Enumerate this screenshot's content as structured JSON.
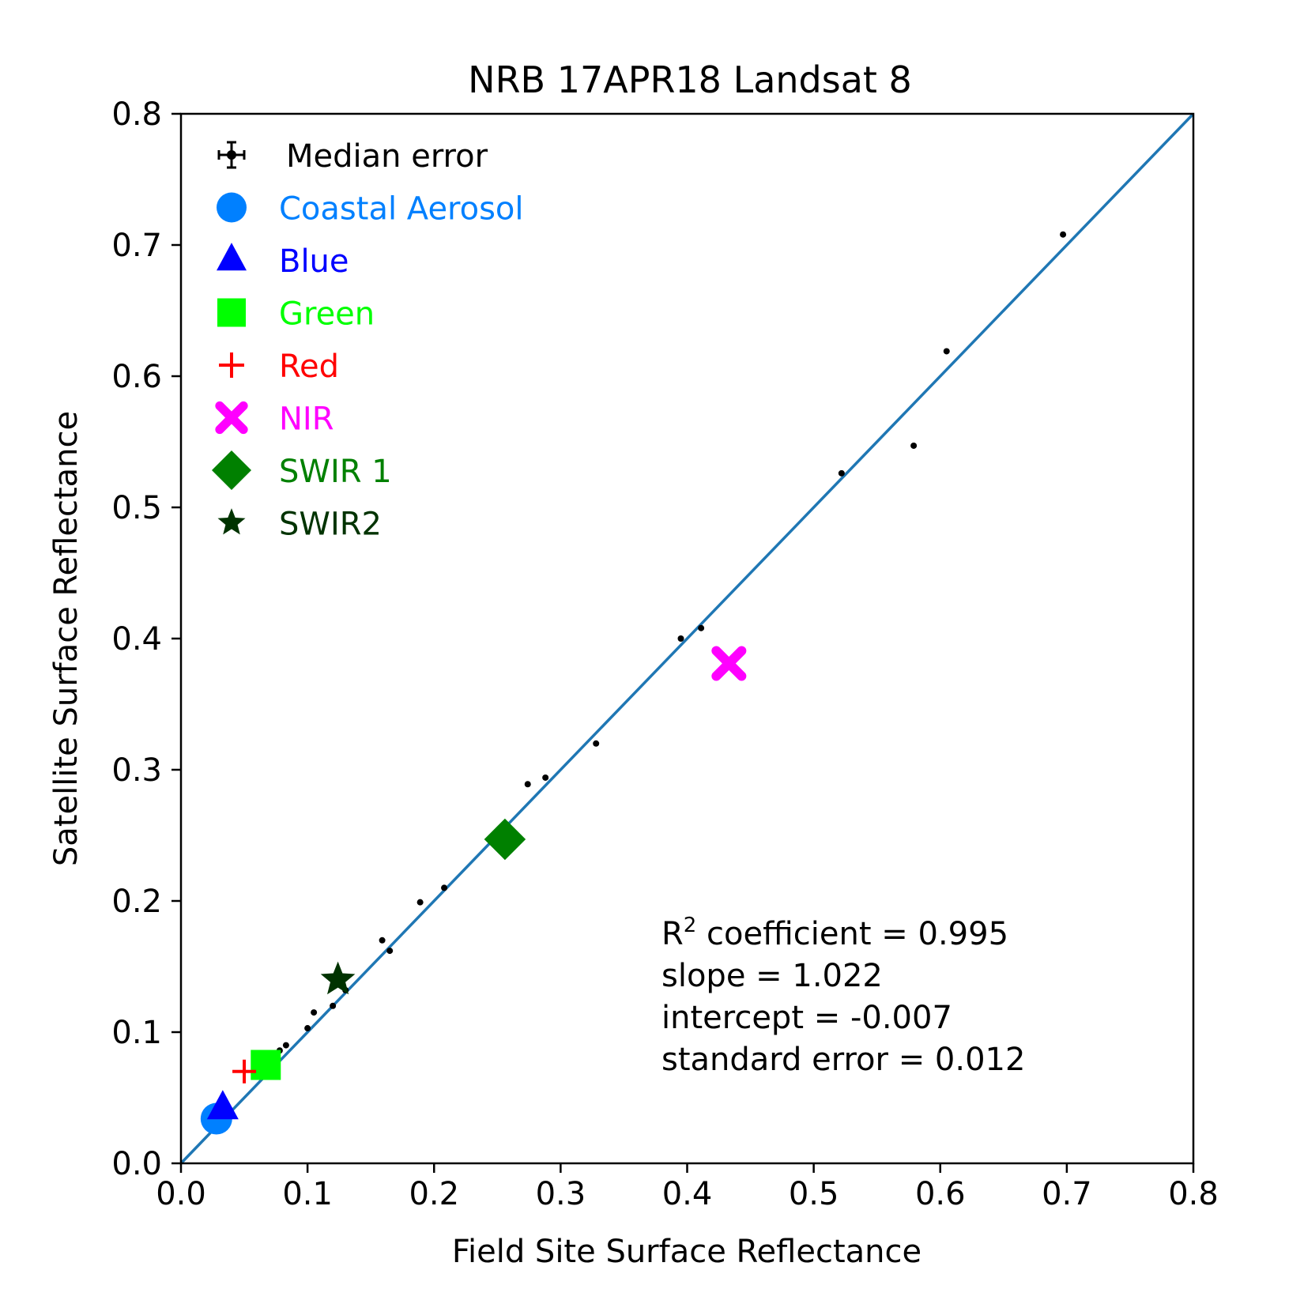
{
  "chart_data": {
    "type": "scatter",
    "title": "NRB 17APR18 Landsat 8",
    "xlabel": "Field Site Surface Reflectance",
    "ylabel": "Satellite Surface Reflectance",
    "xlim": [
      0.0,
      0.8
    ],
    "ylim": [
      0.0,
      0.8
    ],
    "xticks": [
      "0.0",
      "0.1",
      "0.2",
      "0.3",
      "0.4",
      "0.5",
      "0.6",
      "0.7",
      "0.8"
    ],
    "yticks": [
      "0.0",
      "0.1",
      "0.2",
      "0.3",
      "0.4",
      "0.5",
      "0.6",
      "0.7",
      "0.8"
    ],
    "grid": false,
    "legend_position": "top-left",
    "one_to_one_line": {
      "from": [
        0.0,
        0.0
      ],
      "to": [
        0.8,
        0.8
      ],
      "color": "#1f77b4"
    },
    "legend": [
      {
        "label": "Median error",
        "marker": "errorbar",
        "color": "#000000"
      },
      {
        "label": "Coastal Aerosol",
        "marker": "circle",
        "color": "#0080ff"
      },
      {
        "label": "Blue",
        "marker": "triangle",
        "color": "#0000ff"
      },
      {
        "label": "Green",
        "marker": "square",
        "color": "#00ff00"
      },
      {
        "label": "Red",
        "marker": "plus",
        "color": "#ff0000"
      },
      {
        "label": "NIR",
        "marker": "x",
        "color": "#ff00ff"
      },
      {
        "label": "SWIR 1",
        "marker": "diamond",
        "color": "#008000"
      },
      {
        "label": "SWIR2",
        "marker": "star",
        "color": "#003300"
      }
    ],
    "band_points": [
      {
        "name": "Coastal Aerosol",
        "x": 0.028,
        "y": 0.034
      },
      {
        "name": "Blue",
        "x": 0.033,
        "y": 0.042
      },
      {
        "name": "Green",
        "x": 0.067,
        "y": 0.075
      },
      {
        "name": "Red",
        "x": 0.05,
        "y": 0.07
      },
      {
        "name": "NIR",
        "x": 0.433,
        "y": 0.381
      },
      {
        "name": "SWIR 1",
        "x": 0.256,
        "y": 0.247
      },
      {
        "name": "SWIR2",
        "x": 0.124,
        "y": 0.14
      }
    ],
    "median_error_points": [
      {
        "x": 0.078,
        "y": 0.086
      },
      {
        "x": 0.083,
        "y": 0.09
      },
      {
        "x": 0.1,
        "y": 0.103
      },
      {
        "x": 0.105,
        "y": 0.115
      },
      {
        "x": 0.12,
        "y": 0.12
      },
      {
        "x": 0.13,
        "y": 0.132
      },
      {
        "x": 0.159,
        "y": 0.17
      },
      {
        "x": 0.165,
        "y": 0.162
      },
      {
        "x": 0.189,
        "y": 0.199
      },
      {
        "x": 0.208,
        "y": 0.21
      },
      {
        "x": 0.274,
        "y": 0.289
      },
      {
        "x": 0.288,
        "y": 0.294
      },
      {
        "x": 0.328,
        "y": 0.32
      },
      {
        "x": 0.395,
        "y": 0.4
      },
      {
        "x": 0.411,
        "y": 0.408
      },
      {
        "x": 0.522,
        "y": 0.526
      },
      {
        "x": 0.579,
        "y": 0.547
      },
      {
        "x": 0.605,
        "y": 0.619
      },
      {
        "x": 0.697,
        "y": 0.708
      }
    ],
    "stats": {
      "r2_label": "R",
      "r2_superscript": "2",
      "r2_text": " coefficient = 0.995",
      "slope": "slope = 1.022",
      "intercept": "intercept = -0.007",
      "standard_error": "standard error = 0.012"
    }
  }
}
